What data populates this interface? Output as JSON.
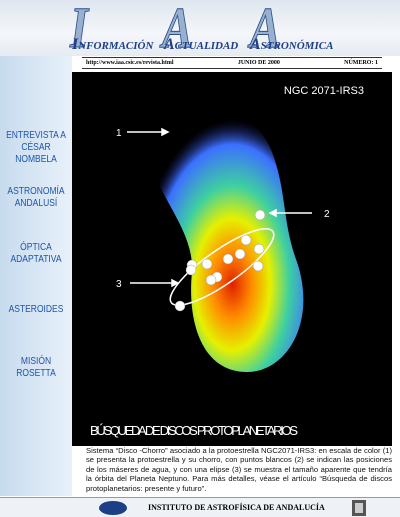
{
  "logo": {
    "initials": [
      "I",
      "A",
      "A"
    ],
    "words": [
      "NFORMACIÓN",
      "CTUALIDAD",
      "STRONÓMICA"
    ]
  },
  "info_bar": {
    "url": "http://www.iaa.csic.es/revista.html",
    "date": "JUNIO DE 2000",
    "number": "NÚMERO: 1"
  },
  "sidebar": [
    "ENTREVISTA A CÉSAR NOMBELA",
    "ASTRONOMÍA ANDALUSÍ",
    "ÓPTICA ADAPTATIVA",
    "ASTEROIDES",
    "MISIÓN ROSETTA"
  ],
  "image": {
    "object": "NGC 2071-IRS3",
    "labels": [
      "1",
      "2",
      "3"
    ],
    "headline": "BÚSQUEDA DE DISCOS PROTOPLANETARIOS"
  },
  "caption": "Sistema “Disco -Chorro” asociado a la protoestrella NGC2071-IRS3: en escala de color (1) se presenta la protoestrella y su chorro, con puntos blancos (2) se indican las posiciones de los máseres de agua, y con una elipse (3) se muestra el tamaño aparente que tendría la órbita del Planeta Neptuno. Para más detalles, véase el artículo “Búsqueda de discos protoplanetarios: presente y futuro”.",
  "footer": "INSTITUTO DE ASTROFÍSICA DE ANDALUCÍA"
}
